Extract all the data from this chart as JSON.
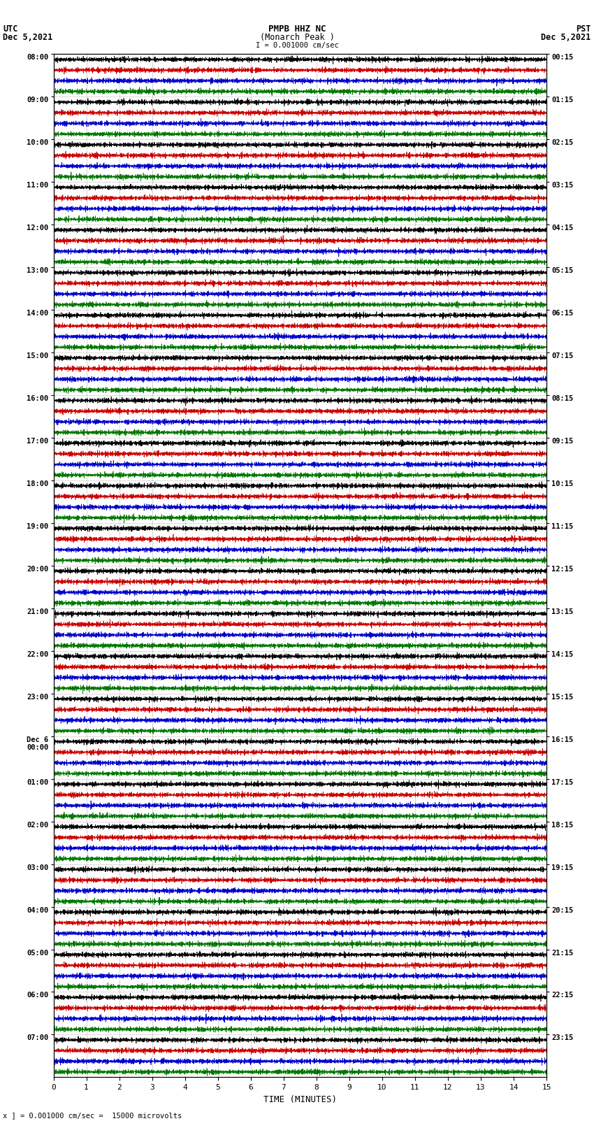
{
  "title_line1": "PMPB HHZ NC",
  "title_line2": "(Monarch Peak )",
  "title_line3": "I = 0.001000 cm/sec",
  "left_label_line1": "UTC",
  "left_label_line2": "Dec 5,2021",
  "right_label_line1": "PST",
  "right_label_line2": "Dec 5,2021",
  "xlabel": "TIME (MINUTES)",
  "footer": "x ] = 0.001000 cm/sec =  15000 microvolts",
  "bg_color": "#ffffff",
  "trace_colors": [
    "#000000",
    "#cc0000",
    "#0000cc",
    "#007700"
  ],
  "grid_color": "#aaaaaa",
  "num_rows": 24,
  "traces_per_row": 4,
  "xmin": 0,
  "xmax": 15,
  "xticks": [
    0,
    1,
    2,
    3,
    4,
    5,
    6,
    7,
    8,
    9,
    10,
    11,
    12,
    13,
    14,
    15
  ],
  "left_ytick_labels": [
    "08:00",
    "09:00",
    "10:00",
    "11:00",
    "12:00",
    "13:00",
    "14:00",
    "15:00",
    "16:00",
    "17:00",
    "18:00",
    "19:00",
    "20:00",
    "21:00",
    "22:00",
    "23:00",
    "Dec 6\n00:00",
    "01:00",
    "02:00",
    "03:00",
    "04:00",
    "05:00",
    "06:00",
    "07:00"
  ],
  "right_ytick_labels": [
    "00:15",
    "01:15",
    "02:15",
    "03:15",
    "04:15",
    "05:15",
    "06:15",
    "07:15",
    "08:15",
    "09:15",
    "10:15",
    "11:15",
    "12:15",
    "13:15",
    "14:15",
    "15:15",
    "16:15",
    "17:15",
    "18:15",
    "19:15",
    "20:15",
    "21:15",
    "22:15",
    "23:15"
  ],
  "trace_amplitude": 0.025,
  "spike_probability": 0.003,
  "spike_amplitude": 0.08,
  "N_points": 2700
}
